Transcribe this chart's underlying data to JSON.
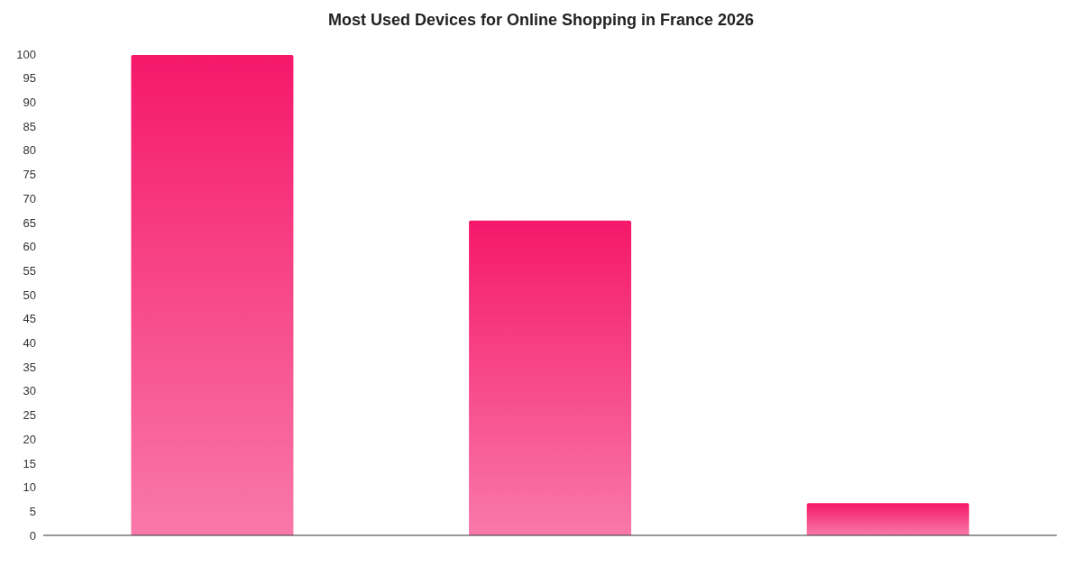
{
  "chart_data": {
    "type": "bar",
    "title": "Most Used Devices for Online Shopping in France 2026",
    "categories": [
      null,
      null,
      null
    ],
    "values": [
      99.8,
      65.4,
      6.7
    ],
    "color": "#f5186b",
    "ylim": [
      0,
      100
    ],
    "yticks": [
      0,
      5,
      10,
      15,
      20,
      25,
      30,
      35,
      40,
      45,
      50,
      55,
      60,
      65,
      70,
      75,
      80,
      85,
      90,
      95,
      100
    ],
    "grid": false,
    "legend": false
  }
}
